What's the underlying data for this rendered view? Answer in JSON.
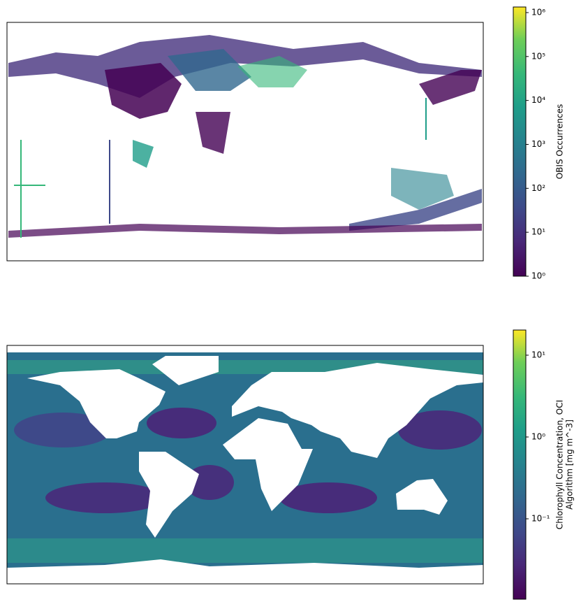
{
  "chart_data": [
    {
      "type": "heatmap",
      "colorbar_label": [
        "OBIS Occurrences"
      ],
      "log_scale": true,
      "clim": [
        1,
        1340000
      ],
      "cticks": [
        {
          "value": 1,
          "label": "10⁰"
        },
        {
          "value": 10,
          "label": "10¹"
        },
        {
          "value": 100,
          "label": "10²"
        },
        {
          "value": 1000,
          "label": "10³"
        },
        {
          "value": 10000,
          "label": "10⁴"
        },
        {
          "value": 100000,
          "label": "10⁵"
        },
        {
          "value": 1000000,
          "label": "10⁶"
        }
      ]
    },
    {
      "type": "heatmap",
      "colorbar_label": [
        "Chlorophyll Concentration, OCI",
        "Algorithm [mg m^-3]"
      ],
      "log_scale": true,
      "clim": [
        0.0104,
        20.3
      ],
      "cticks": [
        {
          "value": 0.1,
          "label": "10⁻¹"
        },
        {
          "value": 1,
          "label": "10⁰"
        },
        {
          "value": 10,
          "label": "10¹"
        }
      ]
    }
  ]
}
